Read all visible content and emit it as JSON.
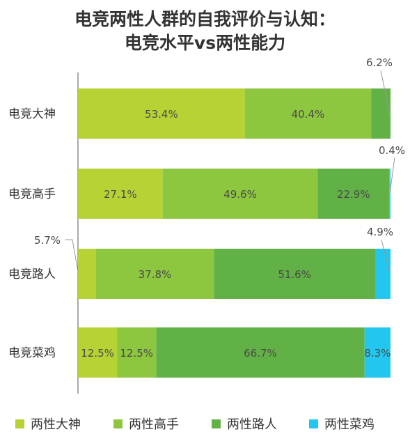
{
  "chart_data": {
    "type": "bar",
    "orientation": "horizontal",
    "stacked": true,
    "title": "电竞两性人群的自我评价与认知：",
    "subtitle": "电竞水平vs两性能力",
    "categories": [
      "电竞大神",
      "电竞高手",
      "电竞路人",
      "电竞菜鸡"
    ],
    "value_labels": [
      [
        "53.4%",
        "40.4%",
        "6.2%",
        ""
      ],
      [
        "27.1%",
        "49.6%",
        "22.9%",
        "0.4%"
      ],
      [
        "5.7%",
        "37.8%",
        "51.6%",
        "4.9%"
      ],
      [
        "12.5%",
        "12.5%",
        "66.7%",
        "8.3%"
      ]
    ],
    "series": [
      {
        "name": "两性大神",
        "color": "#b5d334",
        "values": [
          53.4,
          27.1,
          5.7,
          12.5
        ]
      },
      {
        "name": "两性高手",
        "color": "#8dc63f",
        "values": [
          40.4,
          49.6,
          37.8,
          12.5
        ]
      },
      {
        "name": "两性路人",
        "color": "#62b146",
        "values": [
          6.2,
          22.9,
          51.6,
          66.7
        ]
      },
      {
        "name": "两性菜鸡",
        "color": "#22c6ee",
        "values": [
          0,
          0.4,
          4.9,
          8.3
        ]
      }
    ],
    "xlim": [
      0,
      100
    ],
    "grid": false,
    "legend_position": "bottom"
  }
}
